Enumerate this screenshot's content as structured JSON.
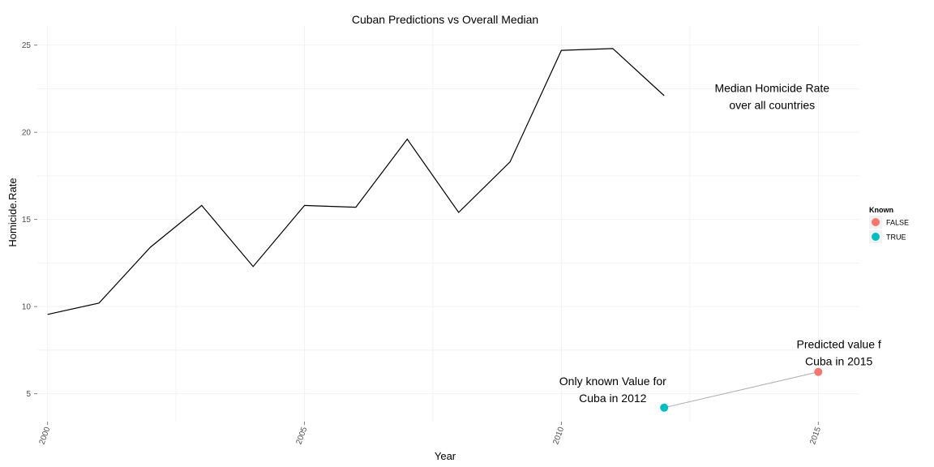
{
  "chart_data": {
    "type": "line",
    "title": "Cuban Predictions vs Overall Median",
    "xlabel": "Year",
    "ylabel": "Homicide.Rate",
    "xlim": [
      1999.8,
      2015.8
    ],
    "ylim": [
      3.4,
      26.1
    ],
    "x_ticks": [
      2000,
      2005,
      2010,
      2015
    ],
    "y_ticks": [
      5,
      10,
      15,
      20,
      25
    ],
    "grid": true,
    "median_series": {
      "x": [
        2000,
        2001,
        2002,
        2003,
        2004,
        2005,
        2006,
        2007,
        2008,
        2009,
        2010,
        2011,
        2012
      ],
      "y": [
        9.55,
        10.2,
        13.4,
        15.8,
        12.3,
        15.8,
        15.7,
        19.6,
        15.4,
        18.3,
        24.7,
        24.8,
        22.1
      ]
    },
    "cuba_points": [
      {
        "x": 2012,
        "y": 4.2,
        "known": "TRUE"
      },
      {
        "x": 2015,
        "y": 6.25,
        "known": "FALSE"
      }
    ],
    "annotations": [
      {
        "lines": [
          "Median Homicide Rate",
          "over all countries"
        ],
        "x": 2014.1,
        "y": 22.3
      },
      {
        "lines": [
          "Only known Value for",
          "Cuba in 2012"
        ],
        "x": 2011.0,
        "y": 5.5
      },
      {
        "lines": [
          "Predicted value f",
          "Cuba in 2015"
        ],
        "x": 2015.4,
        "y": 7.6
      }
    ],
    "legend": {
      "title": "Known",
      "placement": "right",
      "entries": [
        {
          "label": "FALSE",
          "color": "#F8766D"
        },
        {
          "label": "TRUE",
          "color": "#00BFC4"
        }
      ]
    },
    "colors": {
      "median_line": "#000000",
      "connector": "#aaaaaa",
      "grid": "#f2f2f2",
      "tick_label": "#4d4d4d"
    }
  }
}
